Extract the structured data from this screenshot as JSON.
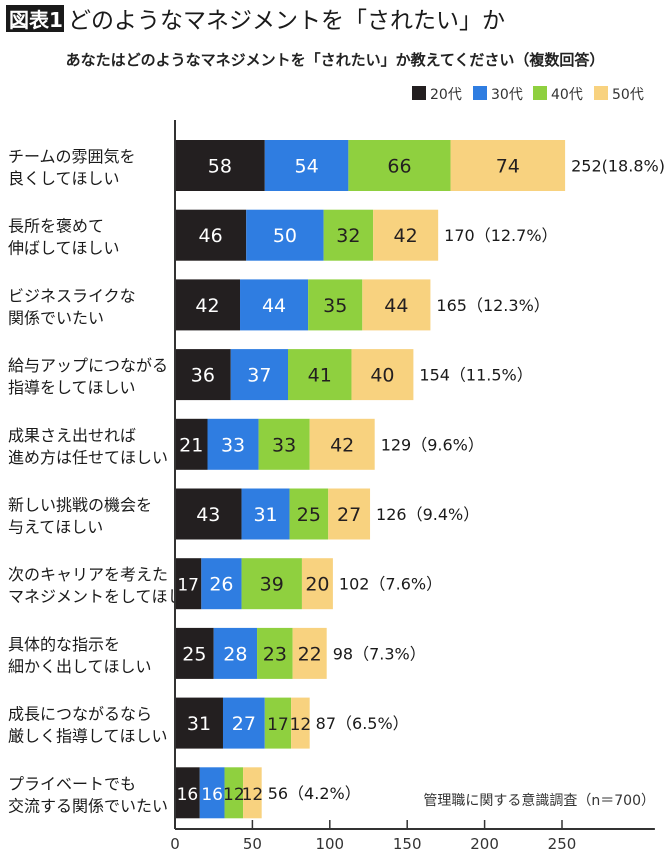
{
  "header": {
    "badge": "図表1",
    "title": "どのようなマネジメントを「されたい」か",
    "subtitle": "あなたはどのようなマネジメントを「されたい」か教えてください（複数回答）"
  },
  "note": "管理職に関する意識調査（n＝700）",
  "chart_data": {
    "type": "bar",
    "orientation": "horizontal",
    "stacked": true,
    "legend_position": "top-right",
    "grid": false,
    "xlim": [
      0,
      310
    ],
    "xticks": [
      0,
      50,
      100,
      150,
      200,
      250
    ],
    "categories": [
      [
        "チームの雰囲気を",
        "良くしてほしい"
      ],
      [
        "長所を褒めて",
        "伸ばしてほしい"
      ],
      [
        "ビジネスライクな",
        "関係でいたい"
      ],
      [
        "給与アップにつながる",
        "指導をしてほしい"
      ],
      [
        "成果さえ出せれば",
        "進め方は任せてほしい"
      ],
      [
        "新しい挑戦の機会を",
        "与えてほしい"
      ],
      [
        "次のキャリアを考えた",
        "マネジメントをしてほしい"
      ],
      [
        "具体的な指示を",
        "細かく出してほしい"
      ],
      [
        "成長につながるなら",
        "厳しく指導してほしい"
      ],
      [
        "プライベートでも",
        "交流する関係でいたい"
      ]
    ],
    "series": [
      {
        "name": "20代",
        "color": "#231f20",
        "label_color": "#ffffff",
        "values": [
          58,
          46,
          42,
          36,
          21,
          43,
          17,
          25,
          31,
          16
        ]
      },
      {
        "name": "30代",
        "color": "#2f7de1",
        "label_color": "#ffffff",
        "values": [
          54,
          50,
          44,
          37,
          33,
          31,
          26,
          28,
          27,
          16
        ]
      },
      {
        "name": "40代",
        "color": "#8fd03f",
        "label_color": "#231f20",
        "values": [
          66,
          32,
          35,
          41,
          33,
          25,
          39,
          23,
          17,
          12
        ]
      },
      {
        "name": "50代",
        "color": "#f8d27f",
        "label_color": "#231f20",
        "values": [
          74,
          42,
          44,
          40,
          42,
          27,
          20,
          22,
          12,
          12
        ]
      }
    ],
    "totals": [
      252,
      170,
      165,
      154,
      129,
      126,
      102,
      98,
      87,
      56
    ],
    "total_labels": [
      "252(18.8%)",
      "170（12.7%）",
      "165（12.3%）",
      "154（11.5%）",
      "129（9.6%）",
      "126（9.4%）",
      "102（7.6%）",
      "98（7.3%）",
      "87（6.5%）",
      "56（4.2%）"
    ]
  }
}
